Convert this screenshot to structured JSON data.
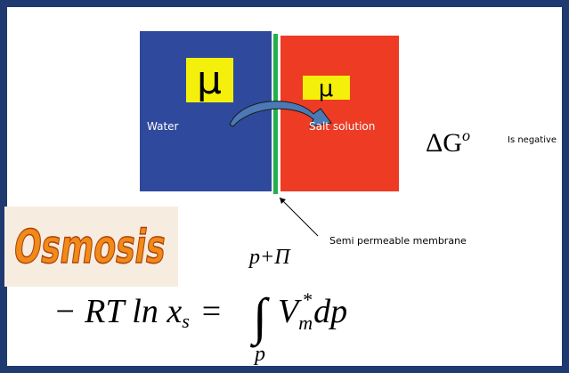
{
  "diagram": {
    "water": {
      "symbol": "μ",
      "label": "Water"
    },
    "salt_solution": {
      "symbol": "μ",
      "label": "Salt solution"
    },
    "membrane_label": "Semi permeable membrane"
  },
  "gibbs": {
    "symbol": "ΔG",
    "superscript": "o",
    "note": "Is negative"
  },
  "logo": "Osmosis",
  "equation": {
    "lhs": "− RT ln x",
    "lhs_subscript": "s",
    "equals": "=",
    "integral": "∫",
    "upper_limit": "p+Π",
    "lower_limit": "p",
    "integrand": "V",
    "integrand_subscript": "m",
    "integrand_superscript": "*",
    "differential": "dp"
  }
}
